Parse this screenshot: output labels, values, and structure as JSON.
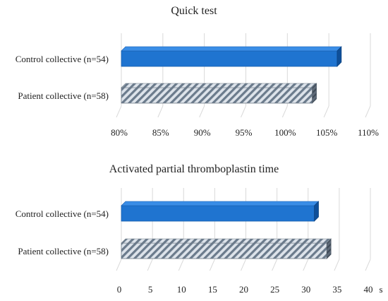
{
  "chart_data": [
    {
      "type": "bar",
      "orientation": "horizontal",
      "title": "Quick test",
      "categories": [
        "Control collective (n=54)",
        "Patient collective (n=58)"
      ],
      "values": [
        106,
        103
      ],
      "unit_label": "",
      "xlim": [
        80,
        110
      ],
      "ticks": [
        80,
        85,
        90,
        95,
        100,
        105,
        110
      ],
      "tick_labels": [
        "80%",
        "85%",
        "90%",
        "95%",
        "100%",
        "105%",
        "110%"
      ],
      "grid": true,
      "styles": [
        "solid-blue",
        "hatched-gray"
      ]
    },
    {
      "type": "bar",
      "orientation": "horizontal",
      "title": "Activated partial thromboplastin time",
      "categories": [
        "Control collective (n=54)",
        "Patient collective (n=58)"
      ],
      "values": [
        31,
        33
      ],
      "unit_label": "s",
      "xlim": [
        0,
        40
      ],
      "ticks": [
        0,
        5,
        10,
        15,
        20,
        25,
        30,
        35,
        40
      ],
      "tick_labels": [
        "0",
        "5",
        "10",
        "15",
        "20",
        "25",
        "30",
        "35",
        "40"
      ],
      "grid": true,
      "styles": [
        "solid-blue",
        "hatched-gray"
      ]
    }
  ],
  "colors": {
    "control_fill": "#1F74D0",
    "control_top": "#3A8DE6",
    "control_side": "#0E4F99",
    "patient_stripe": "#6B7B8C",
    "patient_bg": "#DDE3EA",
    "grid": "#D9D9D9"
  }
}
